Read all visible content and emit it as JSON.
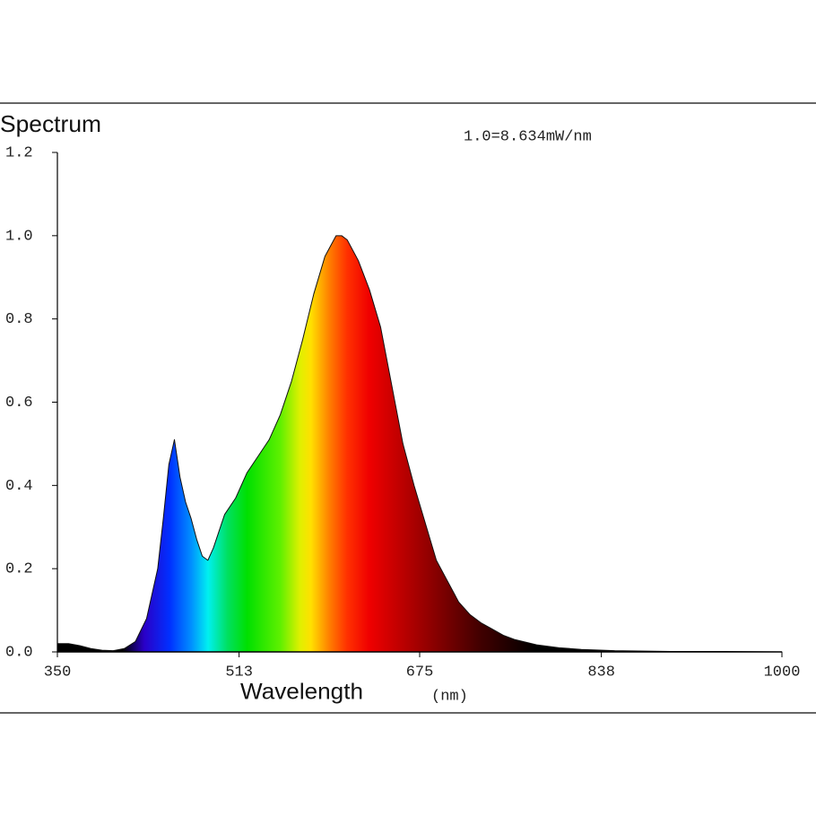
{
  "chart_data": {
    "type": "area",
    "title": "Spectrum",
    "annotation": "1.0=8.634mW/nm",
    "x_label": "Wavelength",
    "x_unit": "(nm)",
    "x": [
      350,
      360,
      370,
      380,
      390,
      400,
      410,
      420,
      430,
      440,
      445,
      450,
      455,
      460,
      465,
      470,
      475,
      480,
      485,
      490,
      500,
      510,
      520,
      530,
      540,
      550,
      560,
      570,
      580,
      590,
      600,
      605,
      610,
      620,
      630,
      640,
      650,
      660,
      670,
      680,
      690,
      700,
      710,
      720,
      730,
      740,
      750,
      760,
      780,
      800,
      820,
      850,
      900,
      950,
      1000
    ],
    "values": [
      0.02,
      0.02,
      0.015,
      0.008,
      0.004,
      0.003,
      0.008,
      0.025,
      0.08,
      0.2,
      0.32,
      0.45,
      0.51,
      0.42,
      0.36,
      0.32,
      0.27,
      0.23,
      0.22,
      0.25,
      0.33,
      0.37,
      0.43,
      0.47,
      0.51,
      0.57,
      0.65,
      0.75,
      0.86,
      0.95,
      1.0,
      1.0,
      0.99,
      0.94,
      0.87,
      0.78,
      0.64,
      0.5,
      0.4,
      0.31,
      0.22,
      0.17,
      0.12,
      0.09,
      0.07,
      0.055,
      0.04,
      0.03,
      0.017,
      0.01,
      0.006,
      0.003,
      0.001,
      0.001,
      0
    ],
    "xlim": [
      350,
      1000
    ],
    "ylim": [
      0,
      1.2
    ],
    "xticks": [
      350,
      513,
      675,
      838,
      1000
    ],
    "yticks": [
      {
        "value": 0,
        "label": "0.0"
      },
      {
        "value": 0.2,
        "label": "0.2"
      },
      {
        "value": 0.4,
        "label": "0.4"
      },
      {
        "value": 0.6,
        "label": "0.6"
      },
      {
        "value": 0.8,
        "label": "0.8"
      },
      {
        "value": 1.0,
        "label": "1.0"
      },
      {
        "value": 1.2,
        "label": "1.2"
      }
    ]
  }
}
